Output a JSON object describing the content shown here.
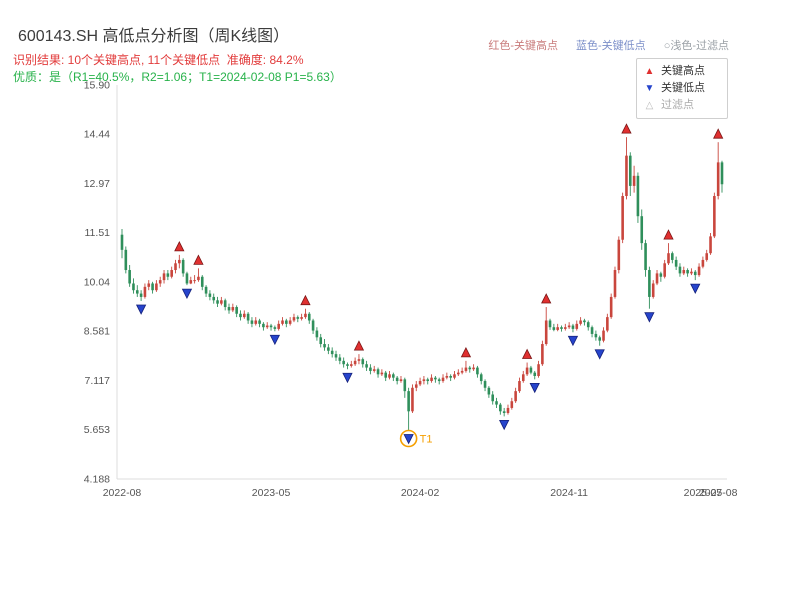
{
  "header": {
    "title": "600143.SH 高低点分析图（周K线图）",
    "top_legend": {
      "key_high": "红色-关键高点",
      "key_low": "蓝色-关键低点",
      "filtered": "○浅色-过滤点"
    },
    "result_line": "识别结果: 10个关键高点, 11个关键低点  准确度: 84.2%",
    "quality_line": "优质：是（R1=40.5%，R2=1.06；T1=2024-02-08 P1=5.63）"
  },
  "chart_legend": {
    "key_high": "关键高点",
    "key_low": "关键低点",
    "filtered": "过滤点"
  },
  "chart_data": {
    "type": "candlestick",
    "title": "600143.SH 高低点分析图（周K线图）",
    "ylim": [
      4.188,
      15.9
    ],
    "y_ticks": [
      "15.90",
      "14.44",
      "12.97",
      "11.51",
      "10.04",
      "8.581",
      "7.117",
      "5.653",
      "4.188"
    ],
    "x_ticks": [
      {
        "index": 0,
        "label": "2022-08"
      },
      {
        "index": 39,
        "label": "2023-05"
      },
      {
        "index": 78,
        "label": "2024-02"
      },
      {
        "index": 117,
        "label": "2024-11"
      },
      {
        "index": 152,
        "label": "2025-07"
      },
      {
        "index": 156,
        "label": "2025-08"
      }
    ],
    "colors": {
      "up": "#c9463d",
      "down": "#2f8f5b",
      "key_high": "#e03030",
      "key_low": "#2644cc",
      "filtered": "#bbbbbb",
      "annotation": "#f59f00"
    },
    "candles": [
      [
        11.45,
        11.62,
        10.75,
        11.0
      ],
      [
        11.0,
        11.1,
        10.3,
        10.4
      ],
      [
        10.4,
        10.55,
        9.9,
        10.0
      ],
      [
        10.0,
        10.15,
        9.7,
        9.8
      ],
      [
        9.8,
        9.95,
        9.6,
        9.7
      ],
      [
        9.7,
        9.8,
        9.48,
        9.6
      ],
      [
        9.6,
        10.0,
        9.55,
        9.9
      ],
      [
        9.9,
        10.1,
        9.8,
        10.0
      ],
      [
        10.0,
        10.05,
        9.7,
        9.8
      ],
      [
        9.8,
        10.1,
        9.75,
        10.0
      ],
      [
        10.0,
        10.2,
        9.9,
        10.1
      ],
      [
        10.1,
        10.4,
        10.0,
        10.3
      ],
      [
        10.3,
        10.4,
        10.1,
        10.2
      ],
      [
        10.2,
        10.5,
        10.15,
        10.4
      ],
      [
        10.4,
        10.7,
        10.3,
        10.6
      ],
      [
        10.6,
        10.85,
        10.45,
        10.7
      ],
      [
        10.7,
        10.75,
        10.2,
        10.3
      ],
      [
        10.3,
        10.35,
        9.95,
        10.0
      ],
      [
        10.0,
        10.2,
        9.98,
        10.1
      ],
      [
        10.1,
        10.25,
        10.0,
        10.1
      ],
      [
        10.1,
        10.45,
        10.05,
        10.2
      ],
      [
        10.2,
        10.25,
        9.8,
        9.9
      ],
      [
        9.9,
        9.95,
        9.6,
        9.7
      ],
      [
        9.7,
        9.8,
        9.5,
        9.6
      ],
      [
        9.6,
        9.7,
        9.4,
        9.5
      ],
      [
        9.5,
        9.6,
        9.3,
        9.4
      ],
      [
        9.4,
        9.6,
        9.35,
        9.5
      ],
      [
        9.5,
        9.55,
        9.2,
        9.3
      ],
      [
        9.3,
        9.4,
        9.1,
        9.2
      ],
      [
        9.2,
        9.4,
        9.15,
        9.3
      ],
      [
        9.3,
        9.35,
        9.0,
        9.1
      ],
      [
        9.1,
        9.2,
        8.9,
        9.0
      ],
      [
        9.0,
        9.2,
        8.95,
        9.1
      ],
      [
        9.1,
        9.15,
        8.8,
        8.9
      ],
      [
        8.9,
        9.0,
        8.7,
        8.8
      ],
      [
        8.8,
        9.0,
        8.75,
        8.9
      ],
      [
        8.9,
        8.95,
        8.7,
        8.8
      ],
      [
        8.8,
        8.85,
        8.6,
        8.7
      ],
      [
        8.7,
        8.85,
        8.65,
        8.75
      ],
      [
        8.75,
        8.8,
        8.6,
        8.7
      ],
      [
        8.7,
        8.75,
        8.58,
        8.65
      ],
      [
        8.65,
        8.9,
        8.6,
        8.8
      ],
      [
        8.8,
        9.0,
        8.75,
        8.9
      ],
      [
        8.9,
        8.95,
        8.7,
        8.8
      ],
      [
        8.8,
        9.0,
        8.75,
        8.9
      ],
      [
        8.9,
        9.1,
        8.85,
        9.0
      ],
      [
        9.0,
        9.05,
        8.85,
        8.95
      ],
      [
        8.95,
        9.1,
        8.9,
        9.0
      ],
      [
        9.0,
        9.25,
        8.95,
        9.1
      ],
      [
        9.1,
        9.15,
        8.8,
        8.9
      ],
      [
        8.9,
        8.95,
        8.5,
        8.6
      ],
      [
        8.6,
        8.7,
        8.3,
        8.4
      ],
      [
        8.4,
        8.5,
        8.1,
        8.2
      ],
      [
        8.2,
        8.35,
        8.0,
        8.1
      ],
      [
        8.1,
        8.2,
        7.9,
        8.0
      ],
      [
        8.0,
        8.1,
        7.8,
        7.9
      ],
      [
        7.9,
        8.0,
        7.7,
        7.8
      ],
      [
        7.8,
        7.9,
        7.6,
        7.7
      ],
      [
        7.7,
        7.8,
        7.5,
        7.6
      ],
      [
        7.6,
        7.65,
        7.45,
        7.55
      ],
      [
        7.55,
        7.7,
        7.5,
        7.6
      ],
      [
        7.6,
        7.8,
        7.55,
        7.7
      ],
      [
        7.7,
        7.9,
        7.6,
        7.75
      ],
      [
        7.75,
        7.8,
        7.5,
        7.6
      ],
      [
        7.6,
        7.7,
        7.4,
        7.5
      ],
      [
        7.5,
        7.6,
        7.3,
        7.4
      ],
      [
        7.4,
        7.55,
        7.35,
        7.45
      ],
      [
        7.45,
        7.5,
        7.2,
        7.3
      ],
      [
        7.3,
        7.45,
        7.25,
        7.35
      ],
      [
        7.35,
        7.4,
        7.1,
        7.2
      ],
      [
        7.2,
        7.4,
        7.15,
        7.3
      ],
      [
        7.3,
        7.35,
        7.1,
        7.2
      ],
      [
        7.2,
        7.25,
        7.0,
        7.1
      ],
      [
        7.1,
        7.25,
        7.05,
        7.15
      ],
      [
        7.15,
        7.2,
        6.6,
        6.8
      ],
      [
        6.8,
        6.9,
        5.63,
        6.2
      ],
      [
        6.2,
        7.0,
        6.15,
        6.9
      ],
      [
        6.9,
        7.1,
        6.8,
        7.0
      ],
      [
        7.0,
        7.2,
        6.95,
        7.1
      ],
      [
        7.1,
        7.25,
        7.0,
        7.15
      ],
      [
        7.15,
        7.2,
        7.0,
        7.1
      ],
      [
        7.1,
        7.3,
        7.05,
        7.2
      ],
      [
        7.2,
        7.25,
        7.05,
        7.15
      ],
      [
        7.15,
        7.2,
        7.0,
        7.1
      ],
      [
        7.1,
        7.3,
        7.05,
        7.2
      ],
      [
        7.2,
        7.35,
        7.15,
        7.25
      ],
      [
        7.25,
        7.3,
        7.1,
        7.2
      ],
      [
        7.2,
        7.4,
        7.15,
        7.3
      ],
      [
        7.3,
        7.45,
        7.25,
        7.35
      ],
      [
        7.35,
        7.5,
        7.3,
        7.4
      ],
      [
        7.4,
        7.7,
        7.35,
        7.5
      ],
      [
        7.5,
        7.55,
        7.35,
        7.45
      ],
      [
        7.45,
        7.6,
        7.4,
        7.5
      ],
      [
        7.5,
        7.55,
        7.2,
        7.3
      ],
      [
        7.3,
        7.35,
        7.0,
        7.1
      ],
      [
        7.1,
        7.15,
        6.8,
        6.9
      ],
      [
        6.9,
        6.95,
        6.6,
        6.7
      ],
      [
        6.7,
        6.8,
        6.4,
        6.5
      ],
      [
        6.5,
        6.6,
        6.3,
        6.4
      ],
      [
        6.4,
        6.45,
        6.1,
        6.2
      ],
      [
        6.2,
        6.3,
        6.05,
        6.15
      ],
      [
        6.15,
        6.4,
        6.1,
        6.3
      ],
      [
        6.3,
        6.6,
        6.25,
        6.5
      ],
      [
        6.5,
        6.9,
        6.45,
        6.8
      ],
      [
        6.8,
        7.2,
        6.75,
        7.1
      ],
      [
        7.1,
        7.4,
        7.05,
        7.3
      ],
      [
        7.3,
        7.65,
        7.25,
        7.5
      ],
      [
        7.5,
        7.55,
        7.3,
        7.35
      ],
      [
        7.35,
        7.4,
        7.15,
        7.25
      ],
      [
        7.25,
        7.7,
        7.2,
        7.6
      ],
      [
        7.6,
        8.3,
        7.55,
        8.2
      ],
      [
        8.2,
        9.3,
        8.15,
        8.9
      ],
      [
        8.9,
        8.95,
        8.62,
        8.7
      ],
      [
        8.7,
        8.8,
        8.58,
        8.62
      ],
      [
        8.62,
        8.8,
        8.58,
        8.7
      ],
      [
        8.7,
        8.75,
        8.57,
        8.65
      ],
      [
        8.65,
        8.8,
        8.6,
        8.7
      ],
      [
        8.7,
        8.85,
        8.65,
        8.75
      ],
      [
        8.75,
        8.8,
        8.55,
        8.65
      ],
      [
        8.65,
        8.9,
        8.6,
        8.8
      ],
      [
        8.8,
        9.0,
        8.75,
        8.9
      ],
      [
        8.9,
        8.95,
        8.75,
        8.85
      ],
      [
        8.85,
        8.9,
        8.6,
        8.7
      ],
      [
        8.7,
        8.75,
        8.4,
        8.5
      ],
      [
        8.5,
        8.6,
        8.3,
        8.4
      ],
      [
        8.4,
        8.45,
        8.15,
        8.3
      ],
      [
        8.3,
        8.7,
        8.25,
        8.6
      ],
      [
        8.6,
        9.1,
        8.55,
        9.0
      ],
      [
        9.0,
        9.7,
        8.95,
        9.6
      ],
      [
        9.6,
        10.5,
        9.55,
        10.4
      ],
      [
        10.4,
        11.4,
        10.3,
        11.3
      ],
      [
        11.3,
        12.7,
        11.2,
        12.6
      ],
      [
        12.6,
        14.35,
        12.5,
        13.8
      ],
      [
        13.8,
        13.9,
        12.6,
        12.9
      ],
      [
        12.9,
        13.5,
        12.7,
        13.2
      ],
      [
        13.2,
        13.3,
        11.8,
        12.0
      ],
      [
        12.0,
        12.2,
        11.0,
        11.2
      ],
      [
        11.2,
        11.3,
        10.2,
        10.4
      ],
      [
        10.4,
        10.5,
        9.25,
        9.6
      ],
      [
        9.6,
        10.1,
        9.55,
        10.0
      ],
      [
        10.0,
        10.4,
        9.95,
        10.3
      ],
      [
        10.3,
        10.35,
        10.05,
        10.2
      ],
      [
        10.2,
        10.7,
        10.15,
        10.6
      ],
      [
        10.6,
        11.2,
        10.55,
        10.9
      ],
      [
        10.9,
        10.95,
        10.6,
        10.7
      ],
      [
        10.7,
        10.8,
        10.4,
        10.5
      ],
      [
        10.5,
        10.6,
        10.2,
        10.3
      ],
      [
        10.3,
        10.5,
        10.25,
        10.4
      ],
      [
        10.4,
        10.45,
        10.2,
        10.3
      ],
      [
        10.3,
        10.45,
        10.25,
        10.35
      ],
      [
        10.35,
        10.4,
        10.1,
        10.25
      ],
      [
        10.25,
        10.6,
        10.2,
        10.5
      ],
      [
        10.5,
        10.8,
        10.45,
        10.7
      ],
      [
        10.7,
        11.0,
        10.65,
        10.9
      ],
      [
        10.9,
        11.5,
        10.85,
        11.4
      ],
      [
        11.4,
        12.7,
        11.35,
        12.6
      ],
      [
        12.6,
        14.2,
        12.5,
        13.6
      ],
      [
        13.6,
        13.65,
        12.7,
        12.95
      ]
    ],
    "key_highs": [
      {
        "index": 15,
        "price": 10.85
      },
      {
        "index": 20,
        "price": 10.45
      },
      {
        "index": 48,
        "price": 9.25
      },
      {
        "index": 62,
        "price": 7.9
      },
      {
        "index": 90,
        "price": 7.7
      },
      {
        "index": 106,
        "price": 7.65
      },
      {
        "index": 111,
        "price": 9.3
      },
      {
        "index": 132,
        "price": 14.35
      },
      {
        "index": 143,
        "price": 11.2
      },
      {
        "index": 156,
        "price": 14.2
      }
    ],
    "key_lows": [
      {
        "index": 5,
        "price": 9.48
      },
      {
        "index": 17,
        "price": 9.95
      },
      {
        "index": 40,
        "price": 8.58
      },
      {
        "index": 59,
        "price": 7.45
      },
      {
        "index": 75,
        "price": 5.63
      },
      {
        "index": 100,
        "price": 6.05
      },
      {
        "index": 108,
        "price": 7.15
      },
      {
        "index": 118,
        "price": 8.55
      },
      {
        "index": 125,
        "price": 8.15
      },
      {
        "index": 138,
        "price": 9.25
      },
      {
        "index": 150,
        "price": 10.1
      }
    ],
    "annotation": {
      "label": "T1",
      "index": 75,
      "price": 5.63,
      "date": "2024-02-08"
    }
  }
}
